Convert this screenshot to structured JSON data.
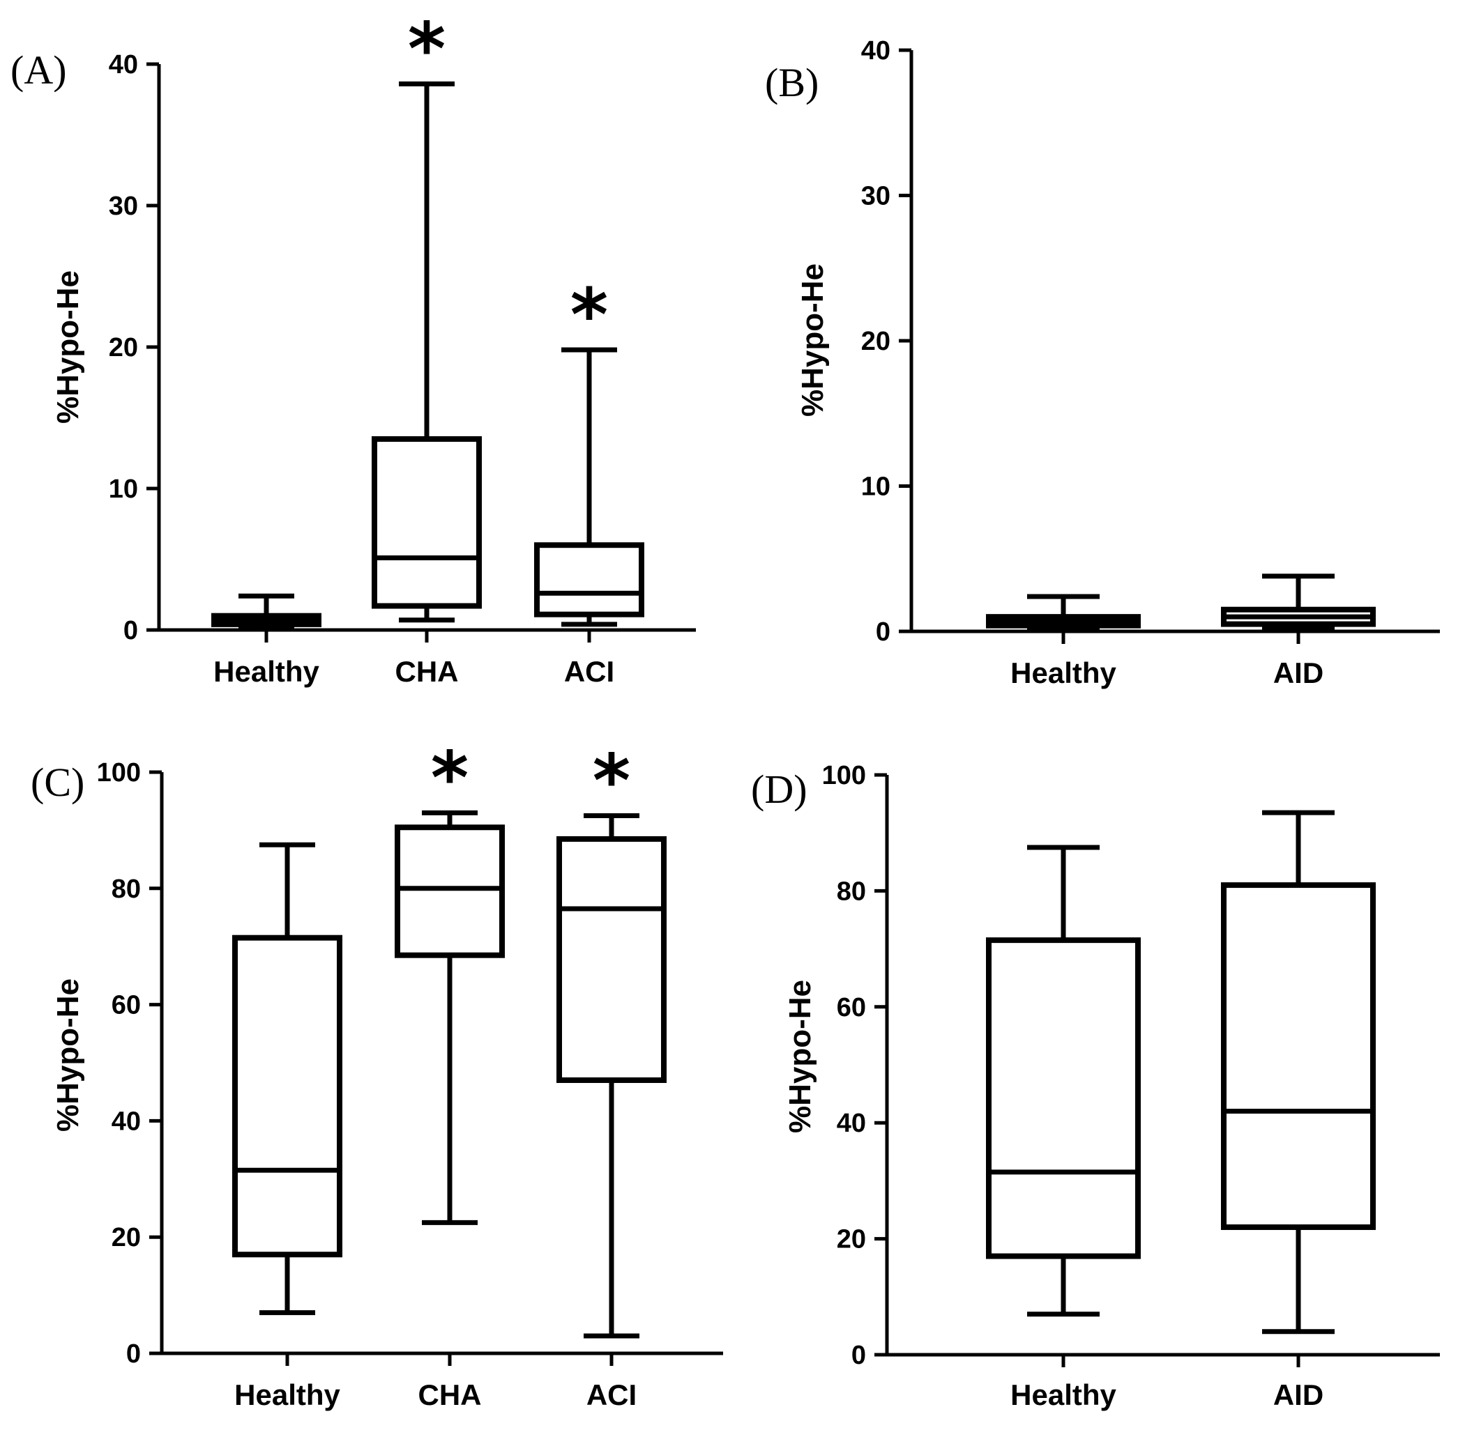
{
  "chart_data": [
    {
      "type": "box",
      "panel_label": "(A)",
      "ylabel": "%Hypo-He",
      "ylim": [
        0,
        40
      ],
      "yticks": [
        0,
        10,
        20,
        30,
        40
      ],
      "categories": [
        "Healthy",
        "CHA",
        "ACI"
      ],
      "boxes": [
        {
          "name": "Healthy",
          "min": 0.2,
          "q1": 0.4,
          "median": 0.7,
          "q3": 1.0,
          "max": 2.4,
          "significant": false
        },
        {
          "name": "CHA",
          "min": 0.7,
          "q1": 1.7,
          "median": 5.1,
          "q3": 13.5,
          "max": 38.6,
          "significant": true
        },
        {
          "name": "ACI",
          "min": 0.4,
          "q1": 1.1,
          "median": 2.6,
          "q3": 6.0,
          "max": 19.8,
          "significant": true
        }
      ],
      "significance_mark": "*"
    },
    {
      "type": "box",
      "panel_label": "(B)",
      "ylabel": "%Hypo-He",
      "ylim": [
        0,
        40
      ],
      "yticks": [
        0,
        10,
        20,
        30,
        40
      ],
      "categories": [
        "Healthy",
        "AID"
      ],
      "boxes": [
        {
          "name": "Healthy",
          "min": 0.2,
          "q1": 0.4,
          "median": 0.7,
          "q3": 1.0,
          "max": 2.4,
          "significant": false
        },
        {
          "name": "AID",
          "min": 0.2,
          "q1": 0.5,
          "median": 1.0,
          "q3": 1.5,
          "max": 3.8,
          "significant": false
        }
      ],
      "significance_mark": "*"
    },
    {
      "type": "box",
      "panel_label": "(C)",
      "ylabel": "%Hypo-He",
      "ylim": [
        0,
        100
      ],
      "yticks": [
        0,
        20,
        40,
        60,
        80,
        100
      ],
      "categories": [
        "Healthy",
        "CHA",
        "ACI"
      ],
      "boxes": [
        {
          "name": "Healthy",
          "min": 7,
          "q1": 17,
          "median": 31.5,
          "q3": 71.5,
          "max": 87.5,
          "significant": false
        },
        {
          "name": "CHA",
          "min": 22.5,
          "q1": 68.5,
          "median": 80,
          "q3": 90.5,
          "max": 93,
          "significant": true
        },
        {
          "name": "ACI",
          "min": 3,
          "q1": 47,
          "median": 76.5,
          "q3": 88.5,
          "max": 92.5,
          "significant": true
        }
      ],
      "significance_mark": "*"
    },
    {
      "type": "box",
      "panel_label": "(D)",
      "ylabel": "%Hypo-He",
      "ylim": [
        0,
        100
      ],
      "yticks": [
        0,
        20,
        40,
        60,
        80,
        100
      ],
      "categories": [
        "Healthy",
        "AID"
      ],
      "boxes": [
        {
          "name": "Healthy",
          "min": 7,
          "q1": 17,
          "median": 31.5,
          "q3": 71.5,
          "max": 87.5,
          "significant": false
        },
        {
          "name": "AID",
          "min": 4,
          "q1": 22,
          "median": 42,
          "q3": 81,
          "max": 93.5,
          "significant": false
        }
      ],
      "significance_mark": "*"
    }
  ]
}
